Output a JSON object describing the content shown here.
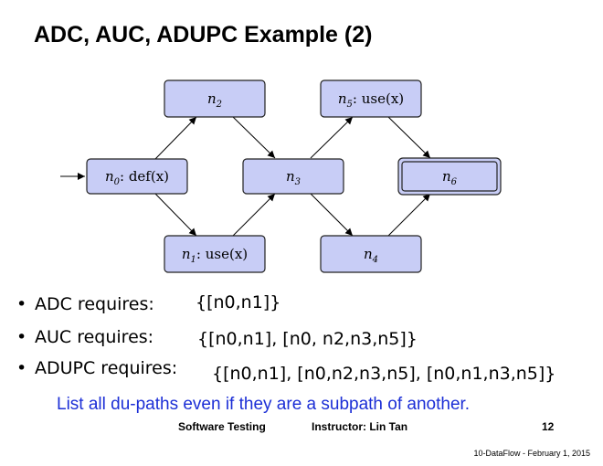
{
  "slide": {
    "title": "ADC, AUC, ADUPC Example (2)",
    "note": "List all du-paths even if they are a subpath of another."
  },
  "graph": {
    "nodes": {
      "n0": {
        "name": "n",
        "sub": "0",
        "label": ": def(x)"
      },
      "n1": {
        "name": "n",
        "sub": "1",
        "label": ": use(x)"
      },
      "n2": {
        "name": "n",
        "sub": "2",
        "label": ""
      },
      "n3": {
        "name": "n",
        "sub": "3",
        "label": ""
      },
      "n4": {
        "name": "n",
        "sub": "4",
        "label": ""
      },
      "n5": {
        "name": "n",
        "sub": "5",
        "label": ": use(x)"
      },
      "n6": {
        "name": "n",
        "sub": "6",
        "label": ""
      }
    },
    "edges": [
      [
        "start",
        "n0"
      ],
      [
        "n0",
        "n1"
      ],
      [
        "n0",
        "n2"
      ],
      [
        "n1",
        "n3"
      ],
      [
        "n2",
        "n3"
      ],
      [
        "n3",
        "n4"
      ],
      [
        "n3",
        "n5"
      ],
      [
        "n4",
        "n6"
      ],
      [
        "n5",
        "n6"
      ]
    ],
    "final_node": "n6",
    "node_fill": "#c8cdf6"
  },
  "requirements": [
    {
      "bullet": "•",
      "label": "ADC requires:",
      "value": "{[n0,n1]}"
    },
    {
      "bullet": "•",
      "label": "AUC requires:",
      "value": "{[n0,n1], [n0, n2,n3,n5]}"
    },
    {
      "bullet": "•",
      "label": "ADUPC requires:",
      "value": "{[n0,n1], [n0,n2,n3,n5], [n0,n1,n3,n5]}"
    }
  ],
  "footer": {
    "course": "Software Testing",
    "instructor": "Instructor: Lin Tan",
    "page": "12",
    "stamp": "10-DataFlow - February 1, 2015"
  }
}
